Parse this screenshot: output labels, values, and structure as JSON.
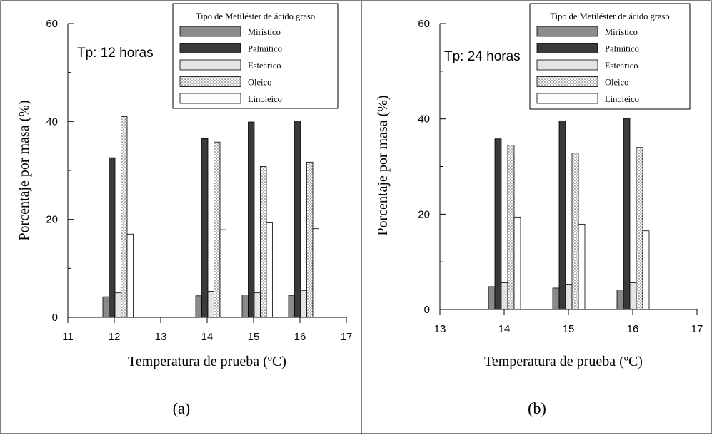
{
  "figure": {
    "legend_title": "Tipo de Metiléster de ácido graso",
    "xlabel": "Temperatura de prueba (ºC)",
    "ylabel": "Porcentaje por masa (%)"
  },
  "colors": {
    "Mirístico": "#8a8a8a",
    "Palmítico": "#3a3a3a",
    "Esteárico": "#e4e4e4",
    "Oleico": "pattern",
    "Linoleico": "#ffffff"
  },
  "chart_data": [
    {
      "type": "bar",
      "annotation": "Tp: 12 horas",
      "panel_label": "(a)",
      "xlabel": "Temperatura de prueba (ºC)",
      "ylabel": "Porcentaje por masa (%)",
      "xlim": [
        11,
        17
      ],
      "ylim": [
        0,
        60
      ],
      "x_ticks": [
        11,
        12,
        13,
        14,
        15,
        16,
        17
      ],
      "y_ticks": [
        0,
        20,
        40,
        60
      ],
      "categories": [
        12,
        14,
        15,
        16
      ],
      "series": [
        {
          "name": "Mirístico",
          "values": [
            4.2,
            4.4,
            4.6,
            4.5
          ]
        },
        {
          "name": "Palmítico",
          "values": [
            32.6,
            36.5,
            39.9,
            40.1
          ]
        },
        {
          "name": "Esteárico",
          "values": [
            5.0,
            5.3,
            5.0,
            5.5
          ]
        },
        {
          "name": "Oleico",
          "values": [
            41.0,
            35.8,
            30.8,
            31.7
          ]
        },
        {
          "name": "Linoleico",
          "values": [
            17.0,
            17.9,
            19.3,
            18.1
          ]
        }
      ],
      "legend_placement": "top-right",
      "grid": false
    },
    {
      "type": "bar",
      "annotation": "Tp: 24 horas",
      "panel_label": "(b)",
      "xlabel": "Temperatura de prueba (ºC)",
      "ylabel": "Porcentaje por masa (%)",
      "xlim": [
        13,
        17
      ],
      "ylim": [
        0,
        60
      ],
      "x_ticks": [
        13,
        14,
        15,
        16,
        17
      ],
      "y_ticks": [
        0,
        20,
        40,
        60
      ],
      "categories": [
        14,
        15,
        16
      ],
      "series": [
        {
          "name": "Mirístico",
          "values": [
            4.8,
            4.5,
            4.1
          ]
        },
        {
          "name": "Palmítico",
          "values": [
            35.8,
            39.6,
            40.1
          ]
        },
        {
          "name": "Esteárico",
          "values": [
            5.6,
            5.3,
            5.6
          ]
        },
        {
          "name": "Oleico",
          "values": [
            34.5,
            32.8,
            34.0
          ]
        },
        {
          "name": "Linoleico",
          "values": [
            19.4,
            17.9,
            16.5
          ]
        }
      ],
      "legend_placement": "top-right",
      "grid": false
    }
  ]
}
